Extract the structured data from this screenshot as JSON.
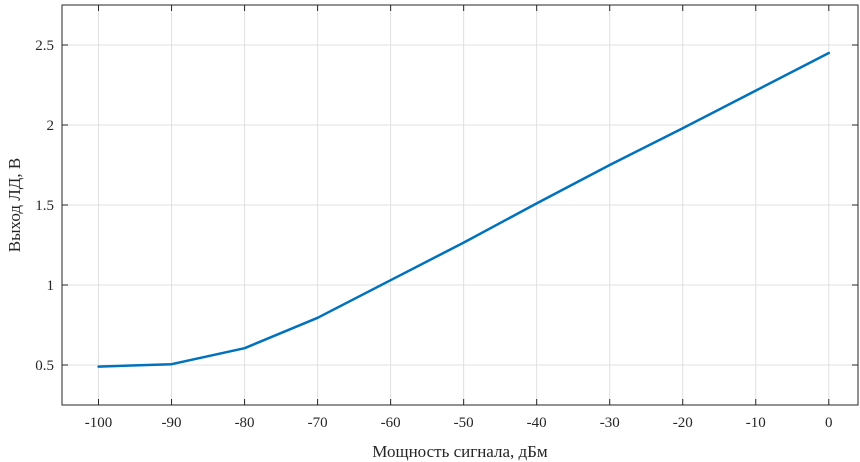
{
  "chart_data": {
    "type": "line",
    "title": "",
    "xlabel": "Мощность сигнала, дБм",
    "ylabel": "Выход ЛД, В",
    "xlim": [
      -105,
      4
    ],
    "ylim": [
      0.25,
      2.75
    ],
    "xticks": [
      -100,
      -90,
      -80,
      -70,
      -60,
      -50,
      -40,
      -30,
      -20,
      -10,
      0
    ],
    "xtick_labels": [
      "-100",
      "-90",
      "-80",
      "-70",
      "-60",
      "-50",
      "-40",
      "-30",
      "-20",
      "-10",
      "0"
    ],
    "yticks": [
      0.5,
      1,
      1.5,
      2,
      2.5
    ],
    "ytick_labels": [
      "0.5",
      "1",
      "1.5",
      "2",
      "2.5"
    ],
    "grid": true,
    "series": [
      {
        "color": "#0072BD",
        "x": [
          -100,
          -90,
          -80,
          -70,
          -60,
          -50,
          -40,
          -30,
          -20,
          -10,
          0
        ],
        "y": [
          0.49,
          0.505,
          0.605,
          0.795,
          1.03,
          1.265,
          1.51,
          1.75,
          1.98,
          2.215,
          2.45
        ]
      }
    ]
  }
}
